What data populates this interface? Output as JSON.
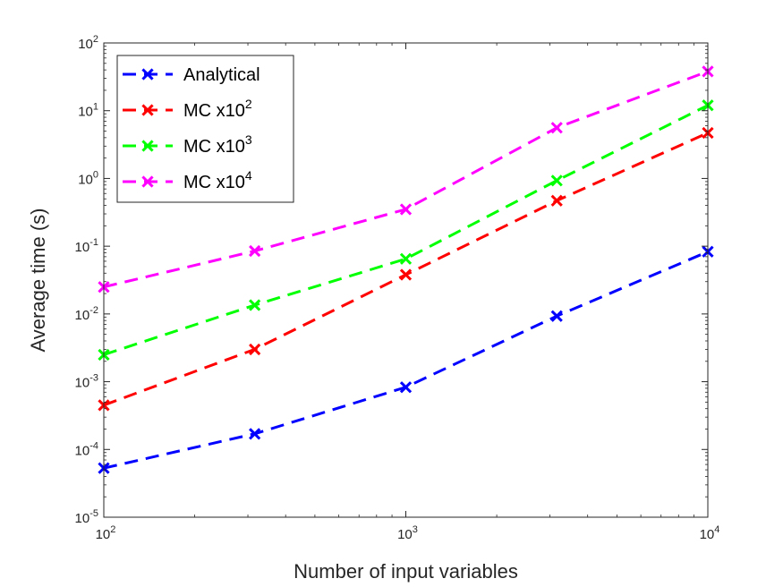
{
  "chart_data": {
    "type": "line",
    "xscale": "log",
    "yscale": "log",
    "xlabel": "Number of input variables",
    "ylabel": "Average time (s)",
    "xlim": [
      100,
      10000
    ],
    "ylim": [
      1e-05,
      100
    ],
    "x": [
      100,
      316,
      1000,
      3162,
      10000
    ],
    "x_ticks": [
      {
        "value": 100,
        "base": "10",
        "exp": "2"
      },
      {
        "value": 1000,
        "base": "10",
        "exp": "3"
      },
      {
        "value": 10000,
        "base": "10",
        "exp": "4"
      }
    ],
    "y_ticks": [
      {
        "value": 1e-05,
        "base": "10",
        "exp": "-5"
      },
      {
        "value": 0.0001,
        "base": "10",
        "exp": "-4"
      },
      {
        "value": 0.001,
        "base": "10",
        "exp": "-3"
      },
      {
        "value": 0.01,
        "base": "10",
        "exp": "-2"
      },
      {
        "value": 0.1,
        "base": "10",
        "exp": "-1"
      },
      {
        "value": 1,
        "base": "10",
        "exp": "0"
      },
      {
        "value": 10,
        "base": "10",
        "exp": "1"
      },
      {
        "value": 100,
        "base": "10",
        "exp": "2"
      }
    ],
    "legend_position": "top-left",
    "series": [
      {
        "name": "Analytical",
        "label_base": "Analytical",
        "label_exp": "",
        "color": "#0000ff",
        "values": [
          5.3e-05,
          0.00017,
          0.00083,
          0.0093,
          0.083
        ]
      },
      {
        "name": "MC x10^2",
        "label_base": "MC x10",
        "label_exp": "2",
        "color": "#ff0000",
        "values": [
          0.00045,
          0.003,
          0.038,
          0.47,
          4.7
        ]
      },
      {
        "name": "MC x10^3",
        "label_base": "MC x10",
        "label_exp": "3",
        "color": "#00ff00",
        "values": [
          0.0025,
          0.0135,
          0.065,
          0.93,
          12
        ]
      },
      {
        "name": "MC x10^4",
        "label_base": "MC x10",
        "label_exp": "4",
        "color": "#ff00ff",
        "values": [
          0.025,
          0.085,
          0.35,
          5.6,
          38
        ]
      }
    ]
  }
}
